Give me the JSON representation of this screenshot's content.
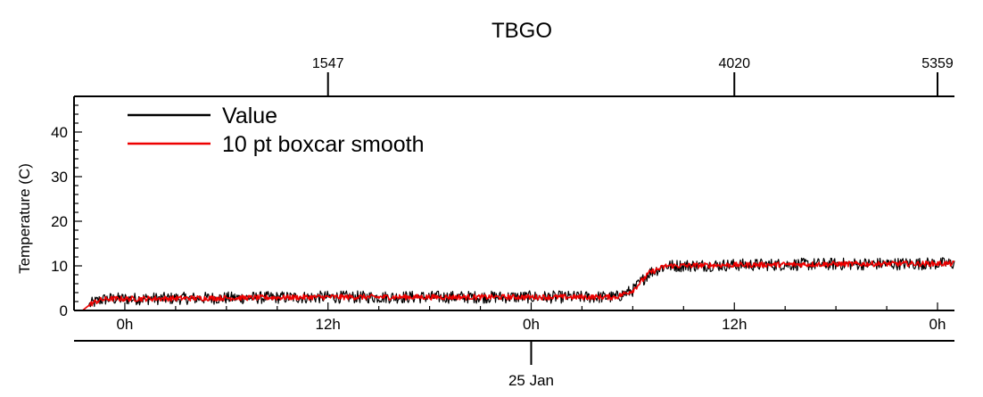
{
  "chart_data": {
    "type": "line",
    "title": "TBGO",
    "ylabel": "Temperature (C)",
    "ylim": [
      0,
      48
    ],
    "yticks": [
      0,
      10,
      20,
      30,
      40
    ],
    "xlim_hours": [
      -3,
      49
    ],
    "x_tick_labels": [
      {
        "label": "0h",
        "hour": 0
      },
      {
        "label": "12h",
        "hour": 12
      },
      {
        "label": "0h",
        "hour": 24
      },
      {
        "label": "12h",
        "hour": 36
      },
      {
        "label": "0h",
        "hour": 48
      }
    ],
    "date_marker": {
      "label": "25 Jan",
      "hour": 24
    },
    "top_axis_ticks": [
      {
        "label": "1547",
        "hour": 12
      },
      {
        "label": "4020",
        "hour": 36
      },
      {
        "label": "5359",
        "hour": 48
      }
    ],
    "legend": {
      "placement": "top-left"
    },
    "series": [
      {
        "name": "Value",
        "color": "#000000",
        "points": [
          [
            -2.5,
            0
          ],
          [
            -2,
            1.5
          ],
          [
            -1.5,
            2.3
          ],
          [
            -1,
            2.6
          ],
          [
            0,
            2.6
          ],
          [
            6,
            2.8
          ],
          [
            12,
            3.0
          ],
          [
            18,
            3.0
          ],
          [
            24,
            3.0
          ],
          [
            29,
            3.0
          ],
          [
            30,
            4.5
          ],
          [
            31,
            8.5
          ],
          [
            32,
            10.0
          ],
          [
            36,
            10.2
          ],
          [
            42,
            10.4
          ],
          [
            48,
            10.5
          ],
          [
            49,
            10.5
          ]
        ],
        "noise": 1.4
      },
      {
        "name": "10 pt boxcar smooth",
        "color": "#ee0000",
        "points": [
          [
            -2.5,
            0
          ],
          [
            -2,
            1.5
          ],
          [
            -1.5,
            2.3
          ],
          [
            -1,
            2.6
          ],
          [
            0,
            2.6
          ],
          [
            6,
            2.8
          ],
          [
            12,
            3.0
          ],
          [
            18,
            3.0
          ],
          [
            24,
            3.0
          ],
          [
            29,
            3.0
          ],
          [
            30,
            4.5
          ],
          [
            31,
            8.5
          ],
          [
            32,
            10.0
          ],
          [
            36,
            10.2
          ],
          [
            42,
            10.4
          ],
          [
            48,
            10.5
          ],
          [
            49,
            10.5
          ]
        ],
        "noise": 0.6
      }
    ]
  }
}
